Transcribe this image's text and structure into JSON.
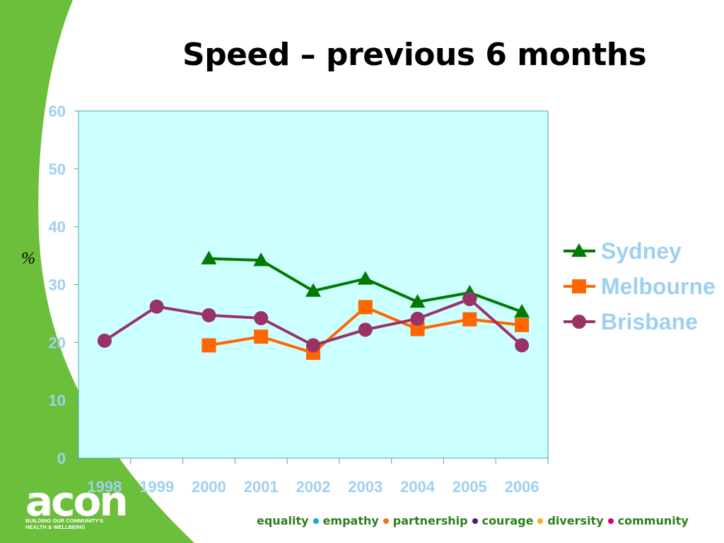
{
  "slide": {
    "title": "Speed – previous 6 months",
    "logo": {
      "name": "acon",
      "tagline_line1": "BUILDING OUR COMMUNITY'S",
      "tagline_line2": "HEALTH & WELLBEING"
    },
    "values": [
      {
        "label": "equality",
        "dot_color": "#1aa3e0"
      },
      {
        "label": "empathy",
        "dot_color": "#e87722"
      },
      {
        "label": "partnership",
        "dot_color": "#4b1f6f"
      },
      {
        "label": "courage",
        "dot_color": "#f2b01e"
      },
      {
        "label": "diversity",
        "dot_color": "#d6006e"
      },
      {
        "label": "community",
        "dot_color": null
      }
    ],
    "accent_green": "#6cbf3a"
  },
  "chart_data": {
    "type": "line",
    "title": "",
    "xlabel": "",
    "ylabel": "%",
    "categories": [
      "1998",
      "1999",
      "2000",
      "2001",
      "2002",
      "2003",
      "2004",
      "2005",
      "2006"
    ],
    "ylim": [
      0,
      60
    ],
    "yticks": [
      0,
      10,
      20,
      30,
      40,
      50,
      60
    ],
    "grid": false,
    "legend_position": "right",
    "plot_background": "#ccffff",
    "series": [
      {
        "name": "Sydney",
        "color": "#007a00",
        "marker": "triangle",
        "values": [
          null,
          null,
          34.5,
          34.2,
          28.9,
          31.0,
          27.0,
          28.6,
          25.3
        ]
      },
      {
        "name": "Melbourne",
        "color": "#ff6600",
        "marker": "square",
        "values": [
          null,
          null,
          19.5,
          21.0,
          18.2,
          26.1,
          22.3,
          24.0,
          23.0
        ]
      },
      {
        "name": "Brisbane",
        "color": "#993366",
        "marker": "circle",
        "values": [
          20.3,
          26.2,
          24.7,
          24.2,
          19.5,
          22.2,
          24.1,
          27.5,
          19.5
        ]
      }
    ]
  }
}
